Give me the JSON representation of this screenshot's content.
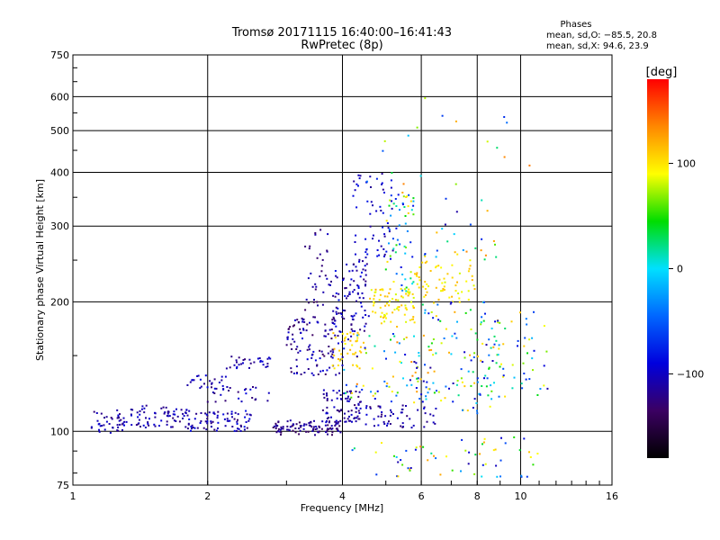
{
  "chart_data": {
    "type": "scatter",
    "title": "Tromsø 20171115 16:40:00–16:41:43",
    "subtitle": "RwPretec (8p)",
    "xlabel": "Frequency [MHz]",
    "ylabel": "Stationary phase Virtual Height [km]",
    "x_scale": "log",
    "y_scale": "log",
    "xlim": [
      1,
      16
    ],
    "ylim": [
      75,
      750
    ],
    "x_ticks": [
      1,
      2,
      4,
      6,
      8,
      10,
      16
    ],
    "x_tick_labels": [
      "1",
      "2",
      "4",
      "6",
      "8",
      "10",
      "16"
    ],
    "y_ticks": [
      75,
      100,
      200,
      300,
      400,
      500,
      600,
      750
    ],
    "y_tick_labels": [
      "75",
      "100",
      "200",
      "300",
      "400",
      "500",
      "600",
      "750"
    ],
    "grid": true,
    "phases_block": {
      "title": "Phases",
      "line1": "mean, sd,O: −85.5, 20.8",
      "line2": "mean, sd,X:  94.6, 23.9"
    },
    "colorbar": {
      "label": "[deg]",
      "range": [
        -180,
        180
      ],
      "ticks": [
        100,
        0,
        -100
      ],
      "tick_labels": [
        "100",
        "0",
        "−100"
      ],
      "stops": [
        "#000000",
        "#3b0062",
        "#0000dd",
        "#0066ff",
        "#00e0ff",
        "#00dd00",
        "#ffff00",
        "#ff8800",
        "#ff0000"
      ]
    },
    "series": [
      {
        "x_range": [
          1.1,
          1.3
        ],
        "y_range": [
          98,
          112
        ],
        "phase_range": [
          -130,
          -90
        ],
        "count": 40
      },
      {
        "x_range": [
          1.3,
          1.8
        ],
        "y_range": [
          102,
          115
        ],
        "phase_range": [
          -130,
          -90
        ],
        "count": 70
      },
      {
        "x_range": [
          1.8,
          2.5
        ],
        "y_range": [
          100,
          112
        ],
        "phase_range": [
          -130,
          -80
        ],
        "count": 80
      },
      {
        "x_range": [
          1.8,
          2.2
        ],
        "y_range": [
          125,
          135
        ],
        "phase_range": [
          -130,
          -90
        ],
        "count": 25
      },
      {
        "x_range": [
          2.2,
          2.8
        ],
        "y_range": [
          140,
          150
        ],
        "phase_range": [
          -130,
          -90
        ],
        "count": 30
      },
      {
        "x_range": [
          2.0,
          2.8
        ],
        "y_range": [
          117,
          128
        ],
        "phase_range": [
          -130,
          -80
        ],
        "count": 25
      },
      {
        "x_range": [
          2.8,
          4.0
        ],
        "y_range": [
          98,
          106
        ],
        "phase_range": [
          -140,
          -100
        ],
        "count": 100
      },
      {
        "x_range": [
          3.0,
          4.0
        ],
        "y_range": [
          135,
          185
        ],
        "phase_range": [
          -140,
          -90
        ],
        "count": 110
      },
      {
        "x_range": [
          3.3,
          3.8
        ],
        "y_range": [
          190,
          300
        ],
        "phase_range": [
          -140,
          -100
        ],
        "count": 35
      },
      {
        "x_range": [
          3.6,
          4.4
        ],
        "y_range": [
          105,
          125
        ],
        "phase_range": [
          -130,
          -90
        ],
        "count": 70
      },
      {
        "x_range": [
          3.8,
          4.6
        ],
        "y_range": [
          170,
          250
        ],
        "phase_range": [
          -130,
          -80
        ],
        "count": 90
      },
      {
        "x_range": [
          3.8,
          4.5
        ],
        "y_range": [
          140,
          170
        ],
        "phase_range": [
          90,
          120
        ],
        "count": 40
      },
      {
        "x_range": [
          4.2,
          5.2
        ],
        "y_range": [
          250,
          400
        ],
        "phase_range": [
          -120,
          -80
        ],
        "count": 60
      },
      {
        "x_range": [
          4.6,
          5.8
        ],
        "y_range": [
          175,
          215
        ],
        "phase_range": [
          80,
          120
        ],
        "count": 80
      },
      {
        "x_range": [
          5.0,
          5.8
        ],
        "y_range": [
          210,
          360
        ],
        "phase_range": [
          -90,
          110
        ],
        "count": 60
      },
      {
        "x_range": [
          4.0,
          6.5
        ],
        "y_range": [
          102,
          115
        ],
        "phase_range": [
          -130,
          -90
        ],
        "count": 60
      },
      {
        "x_range": [
          4.0,
          6.5
        ],
        "y_range": [
          115,
          170
        ],
        "phase_range": [
          -120,
          140
        ],
        "count": 80
      },
      {
        "x_range": [
          5.8,
          8.0
        ],
        "y_range": [
          200,
          250
        ],
        "phase_range": [
          80,
          120
        ],
        "count": 60
      },
      {
        "x_range": [
          5.8,
          9.0
        ],
        "y_range": [
          110,
          200
        ],
        "phase_range": [
          -110,
          130
        ],
        "count": 110
      },
      {
        "x_range": [
          6.0,
          9.0
        ],
        "y_range": [
          250,
          330
        ],
        "phase_range": [
          -120,
          140
        ],
        "count": 25
      },
      {
        "x_range": [
          8.0,
          11.5
        ],
        "y_range": [
          120,
          190
        ],
        "phase_range": [
          -110,
          130
        ],
        "count": 60
      },
      {
        "x_range": [
          4.2,
          11.0
        ],
        "y_range": [
          78,
          98
        ],
        "phase_range": [
          -110,
          130
        ],
        "count": 60
      },
      {
        "x_range": [
          4.5,
          10.5
        ],
        "y_range": [
          330,
          640
        ],
        "phase_range": [
          -100,
          150
        ],
        "count": 22
      }
    ]
  }
}
